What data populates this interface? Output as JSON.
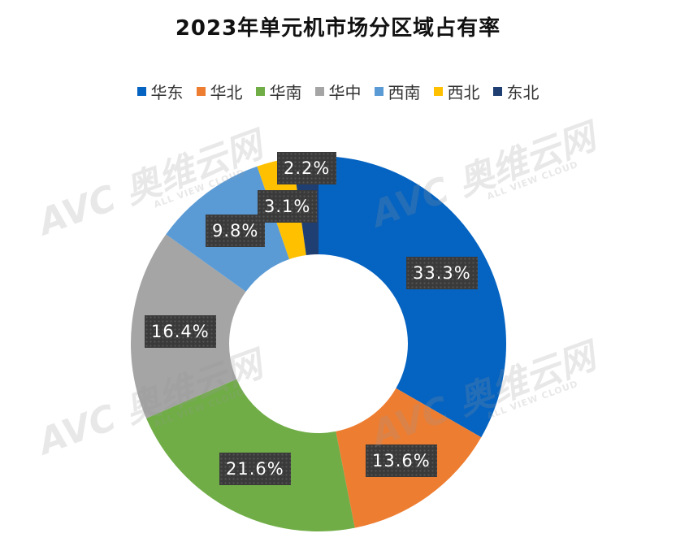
{
  "chart_data": {
    "type": "pie",
    "donut": true,
    "title": "2023年单元机市场分区域占有率",
    "legend_position": "top",
    "categories": [
      "华东",
      "华北",
      "华南",
      "华中",
      "西南",
      "西北",
      "东北"
    ],
    "values": [
      33.3,
      13.6,
      21.6,
      16.4,
      9.8,
      3.1,
      2.2
    ],
    "data_labels": [
      "33.3%",
      "13.6%",
      "21.6%",
      "16.4%",
      "9.8%",
      "3.1%",
      "2.2%"
    ],
    "colors": [
      "#0563C1",
      "#ED7D31",
      "#70AD47",
      "#A5A5A5",
      "#5B9BD5",
      "#FFC000",
      "#1F3F73"
    ]
  },
  "watermark": {
    "logo": "AVC 奥维云网",
    "sub": "ALL VIEW CLOUD"
  }
}
